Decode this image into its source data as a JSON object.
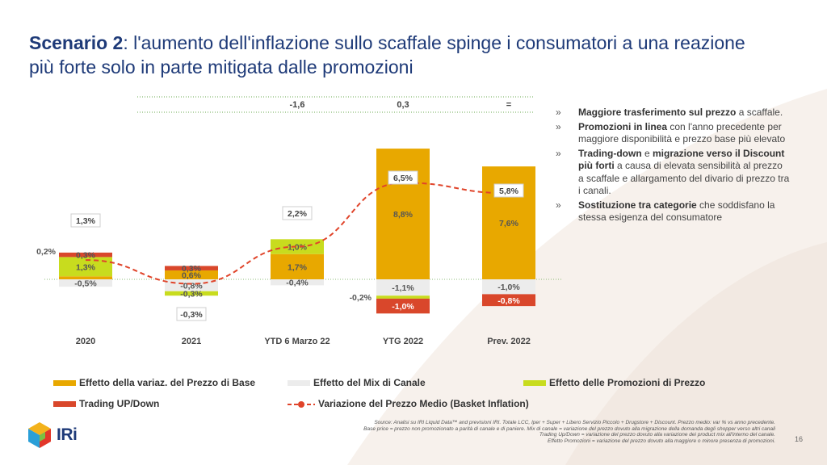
{
  "title": {
    "lead": "Scenario 2",
    "rest": ": l'aumento dell'inflazione sullo scaffale spinge i consumatori a una reazione più forte solo in parte mitigata dalle promozioni"
  },
  "chart_data": {
    "type": "bar",
    "stacked": true,
    "categories": [
      "2020",
      "2021",
      "YTD 6 Marzo 22",
      "YTG 2022",
      "Prev. 2022"
    ],
    "series": [
      {
        "name": "Effetto della variaz. del Prezzo di Base",
        "color": "#e8a800",
        "values": [
          0.2,
          0.6,
          1.7,
          8.8,
          7.6
        ],
        "labels": [
          "0,2%",
          "0,6%",
          "1,7%",
          "8,8%",
          "7,6%"
        ]
      },
      {
        "name": "Effetto del Mix di Canale",
        "color": "#ececec",
        "values": [
          -0.5,
          -0.8,
          -0.4,
          -1.1,
          -1.0
        ],
        "labels": [
          "-0,5%",
          "-0,8%",
          "-0,4%",
          "-1,1%",
          "-1,0%"
        ]
      },
      {
        "name": "Effetto delle Promozioni di Prezzo",
        "color": "#c8dc1e",
        "values": [
          1.3,
          -0.3,
          1.0,
          -0.2,
          0.0
        ],
        "labels": [
          "1,3%",
          "-0,3%",
          "1,0%",
          "-0,2%",
          ""
        ]
      },
      {
        "name": "Trading UP/Down",
        "color": "#d9472b",
        "values": [
          0.3,
          0.3,
          0.0,
          -1.0,
          -0.8
        ],
        "labels": [
          "0,3%",
          "0,3%",
          "",
          "-1,0%",
          "-0,8%"
        ]
      }
    ],
    "line": {
      "name": "Variazione del Prezzo Medio (Basket Inflation)",
      "color": "#e0442a",
      "values": [
        1.3,
        -0.3,
        2.2,
        6.5,
        5.8
      ],
      "labels": [
        "1,3%",
        "-0,3%",
        "2,2%",
        "6,5%",
        "5,8%"
      ]
    },
    "top_row": [
      "",
      "",
      "-1,6",
      "0,3",
      "="
    ],
    "ylim": [
      -3,
      12.5
    ],
    "legend_position": "bottom",
    "grid": false
  },
  "bullets": [
    {
      "bold": "Maggiore trasferimento sul prezzo",
      "rest": " a scaffale."
    },
    {
      "bold": "Promozioni in linea",
      "rest": " con l'anno precedente per maggiore disponibilità e prezzo base più elevato"
    },
    {
      "bold": "Trading-down",
      "mid": " e ",
      "bold2": "migrazione verso il Discount più forti",
      "rest": " a causa di elevata sensibilità al prezzo a scaffale e allargamento del divario di prezzo tra i canali."
    },
    {
      "bold": "Sostituzione tra categorie",
      "rest": " che soddisfano la stessa esigenza del consumatore"
    }
  ],
  "bullet_mark": "»",
  "source_lines": [
    "Source: Analisi su IRI Liquid Data™ and previsioni IRI. Totale LCC, Iper + Super + Libero Servizio Piccolo + Drugstore + Discount. Prezzo medio: var % vs anno precedente.",
    "Base price = prezzo non promozionato a parità di canale e di paniere. Mix di canale = variazione del prezzo dovuto alla migrazione della domanda degli shopper verso altri canali",
    "Trading Up/Down = variazione del prezzo dovuto alla variazione dei product mix all'interno del canale.",
    "Effetto Promozioni = variazione del prezzo dovuto alla maggiore o minore presenza di promozioni."
  ],
  "page_number": "16",
  "logo_text": "IRi"
}
